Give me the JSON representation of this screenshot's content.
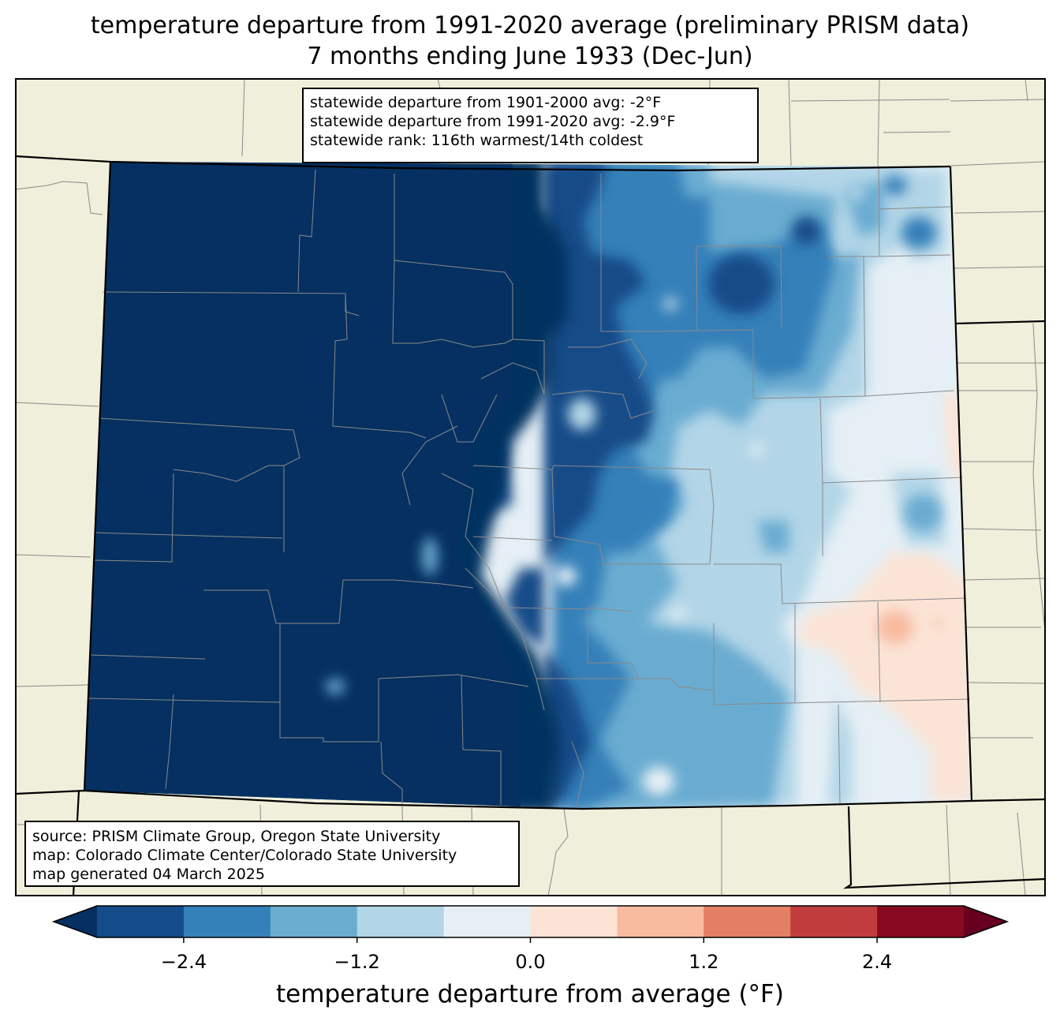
{
  "title": {
    "line1": "temperature departure from 1991-2020 average (preliminary PRISM data)",
    "line2": "7 months ending June 1933 (Dec-Jun)"
  },
  "stats": {
    "line1": "statewide departure from 1901-2000 avg: -2°F",
    "line2": "statewide departure from 1991-2020 avg: -2.9°F",
    "line3": "statewide rank: 116th warmest/14th coldest"
  },
  "source": {
    "line1": "source: PRISM Climate Group, Oregon State University",
    "line2": "map: Colorado Climate Center/Colorado State University",
    "line3": "map generated 04 March 2025"
  },
  "colorbar": {
    "label": "temperature departure from average (°F)",
    "ticks": [
      "−2.4",
      "−1.2",
      "0.0",
      "1.2",
      "2.4"
    ],
    "tick_values": [
      -2.4,
      -1.2,
      0.0,
      1.2,
      2.4
    ],
    "range": [
      -3.0,
      3.0
    ],
    "step": 0.6,
    "under_color": "#053061",
    "over_color": "#67001f",
    "colors": [
      "#134c88",
      "#3480b9",
      "#6bacd1",
      "#b2d5e7",
      "#e5eff5",
      "#fbe4d6",
      "#f8bba0",
      "#e27f64",
      "#c13d3d",
      "#880a22"
    ]
  },
  "map_colors": {
    "background_land": "#efefdb",
    "county_line": "#8a8a8a",
    "state_line": "#000000"
  }
}
